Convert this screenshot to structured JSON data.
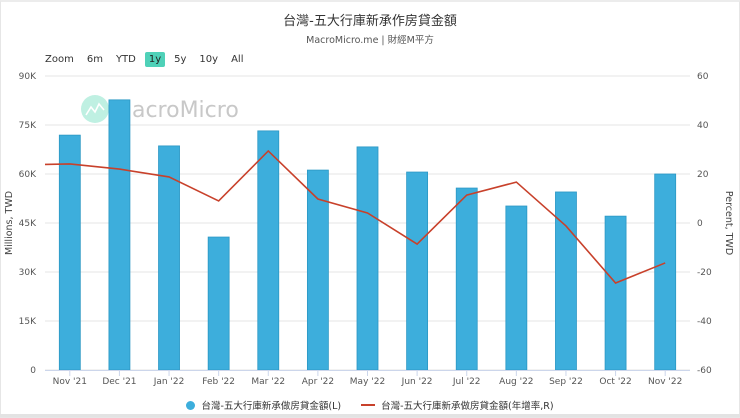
{
  "header": {
    "title": "台灣-五大行庫新承作房貸金額",
    "subtitle": "MacroMicro.me | 財經M平方"
  },
  "zoom": {
    "label": "Zoom",
    "buttons": [
      {
        "label": "6m",
        "active": false
      },
      {
        "label": "YTD",
        "active": false
      },
      {
        "label": "1y",
        "active": true
      },
      {
        "label": "5y",
        "active": false
      },
      {
        "label": "10y",
        "active": false
      },
      {
        "label": "All",
        "active": false
      }
    ]
  },
  "watermark": {
    "text": "MacroMicro",
    "icon": "chart-line-icon"
  },
  "colors": {
    "bar": "#3daedc",
    "bar_edge": "#2b97c4",
    "line": "#c8412b",
    "zoom_active": "#4fd1b8",
    "grid": "#e6e6e6",
    "watermark_circle": "#bff0e2"
  },
  "legend": [
    {
      "label": "台灣-五大行庫新承做房貸金額(L)",
      "type": "dot",
      "color": "#3daedc"
    },
    {
      "label": "台灣-五大行庫新承做房貸金額(年增率,R)",
      "type": "line",
      "color": "#c8412b"
    }
  ],
  "chart_data": {
    "type": "bar",
    "title": "台灣-五大行庫新承作房貸金額",
    "subtitle": "MacroMicro.me | 財經M平方",
    "categories": [
      "Nov '21",
      "Dec '21",
      "Jan '22",
      "Feb '22",
      "Mar '22",
      "Apr '22",
      "May '22",
      "Jun '22",
      "Jul '22",
      "Aug '22",
      "Sep '22",
      "Oct '22",
      "Nov '22"
    ],
    "series": [
      {
        "name": "台灣-五大行庫新承做房貸金額(L)",
        "type": "bar",
        "axis": "left",
        "values": [
          71900,
          82700,
          68600,
          40700,
          73200,
          61200,
          68300,
          60600,
          55700,
          50200,
          54500,
          47100,
          60000
        ]
      },
      {
        "name": "台灣-五大行庫新承做房貸金額(年增率,R)",
        "type": "line",
        "axis": "right",
        "values": [
          24.1,
          22.0,
          18.8,
          9.0,
          29.4,
          9.8,
          4.1,
          -8.6,
          11.4,
          16.7,
          -1.2,
          -24.5,
          -16.3
        ],
        "left_edge_value": 23.9
      }
    ],
    "y_left": {
      "label": "Millions, TWD",
      "range": [
        0,
        90000
      ],
      "ticks": [
        "0",
        "15K",
        "30K",
        "45K",
        "60K",
        "75K",
        "90K"
      ],
      "tick_values": [
        0,
        15000,
        30000,
        45000,
        60000,
        75000,
        90000
      ]
    },
    "y_right": {
      "label": "Percent, TWD",
      "range": [
        -60,
        60
      ],
      "ticks": [
        "-60",
        "-40",
        "-20",
        "0",
        "20",
        "40",
        "60"
      ],
      "tick_values": [
        -60,
        -40,
        -20,
        0,
        20,
        40,
        60
      ]
    },
    "xlabel": "",
    "grid": true,
    "legend_position": "bottom"
  }
}
